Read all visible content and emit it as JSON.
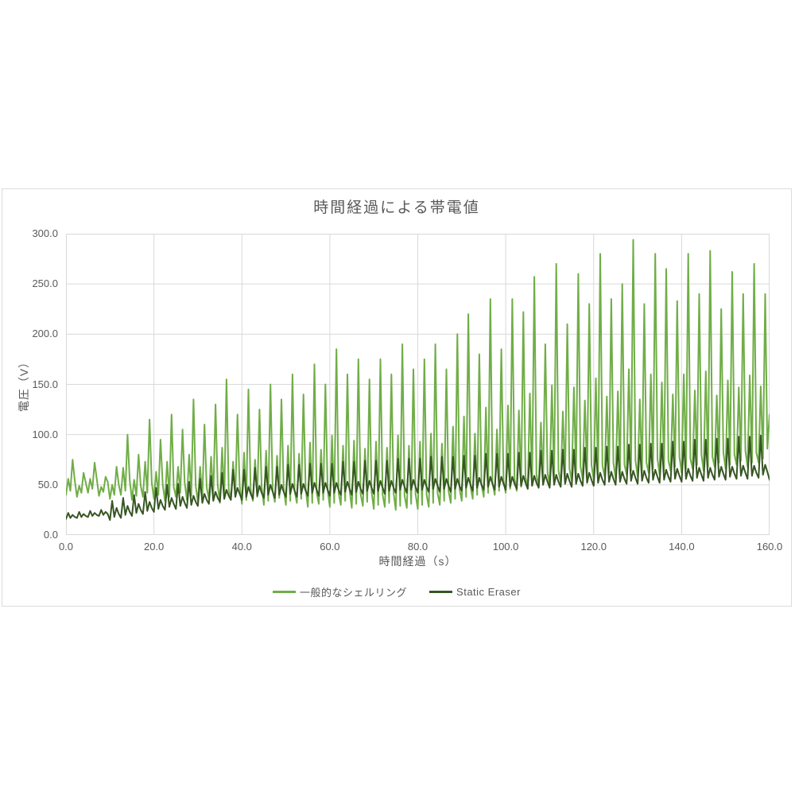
{
  "page": {
    "background": "#ffffff"
  },
  "chart": {
    "title": "時間経過による帯電値",
    "y_axis_title": "電圧（V）",
    "x_axis_title": "時間経過（s）"
  },
  "legend": {
    "position": "bottom-center",
    "items": [
      {
        "label": "一般的なシェルリング",
        "color": "#70ad47"
      },
      {
        "label": "Static Eraser",
        "color": "#375623"
      }
    ]
  },
  "colors": {
    "grid": "#d9d9d9",
    "text": "#595959",
    "panel_border": "#dcdcdc",
    "series_light_green": "#70ad47",
    "series_dark_green": "#375623"
  },
  "chart_data": {
    "type": "line",
    "title": "時間経過による帯電値",
    "xlabel": "時間経過（s）",
    "ylabel": "電圧（V）",
    "xlim": [
      0,
      160
    ],
    "ylim": [
      0,
      300
    ],
    "grid": true,
    "x_ticks": [
      0,
      20,
      40,
      60,
      80,
      100,
      120,
      140,
      160
    ],
    "x_tick_labels": [
      "0.0",
      "20.0",
      "40.0",
      "60.0",
      "80.0",
      "100.0",
      "120.0",
      "140.0",
      "160.0"
    ],
    "y_ticks": [
      0,
      50,
      100,
      150,
      200,
      250,
      300
    ],
    "y_tick_labels": [
      "0.0",
      "50.0",
      "100.0",
      "150.0",
      "200.0",
      "250.0",
      "300.0"
    ],
    "x_start": 0,
    "x_step": 0.5,
    "series": [
      {
        "name": "一般的なシェルリング",
        "color": "#70ad47",
        "stroke_width": 2,
        "values": [
          40,
          56,
          44,
          75,
          54,
          38,
          49,
          42,
          62,
          52,
          42,
          56,
          46,
          72,
          56,
          39,
          48,
          43,
          58,
          53,
          36,
          50,
          40,
          68,
          50,
          40,
          67,
          44,
          100,
          54,
          35,
          55,
          39,
          80,
          49,
          38,
          73,
          42,
          115,
          52,
          36,
          63,
          40,
          95,
          50,
          34,
          73,
          38,
          120,
          48,
          38,
          68,
          42,
          105,
          52,
          35,
          80,
          39,
          135,
          49,
          33,
          68,
          37,
          110,
          47,
          36,
          78,
          40,
          130,
          50,
          32,
          87,
          36,
          155,
          46,
          35,
          73,
          39,
          120,
          49,
          31,
          82,
          35,
          145,
          45,
          34,
          75,
          38,
          125,
          48,
          30,
          84,
          34,
          150,
          44,
          33,
          79,
          37,
          135,
          47,
          30,
          89,
          34,
          160,
          44,
          32,
          81,
          36,
          140,
          46,
          28,
          92,
          32,
          170,
          42,
          31,
          85,
          35,
          150,
          45,
          28,
          99,
          32,
          185,
          42,
          30,
          89,
          34,
          160,
          44,
          27,
          94,
          31,
          175,
          41,
          29,
          86,
          33,
          155,
          43,
          26,
          93,
          30,
          175,
          40,
          28,
          87,
          32,
          160,
          42,
          25,
          99,
          29,
          190,
          39,
          27,
          89,
          31,
          165,
          41,
          26,
          93,
          30,
          175,
          40,
          28,
          101,
          32,
          190,
          42,
          30,
          91,
          34,
          165,
          44,
          32,
          108,
          36,
          200,
          46,
          34,
          118,
          38,
          220,
          48,
          36,
          101,
          40,
          180,
          50,
          38,
          127,
          42,
          235,
          52,
          40,
          105,
          44,
          185,
          54,
          42,
          129,
          46,
          235,
          56,
          44,
          124,
          48,
          222,
          58,
          46,
          141,
          50,
          257,
          60,
          48,
          112,
          52,
          190,
          62,
          50,
          149,
          54,
          270,
          64,
          52,
          123,
          56,
          210,
          66,
          54,
          147,
          58,
          260,
          68,
          56,
          134,
          60,
          230,
          70,
          55,
          156,
          59,
          280,
          69,
          58,
          138,
          62,
          235,
          72,
          56,
          143,
          60,
          250,
          70,
          60,
          165,
          64,
          294,
          74,
          58,
          135,
          62,
          230,
          72,
          62,
          160,
          66,
          280,
          76,
          60,
          152,
          64,
          265,
          74,
          64,
          140,
          68,
          233,
          78,
          62,
          160,
          66,
          280,
          76,
          66,
          144,
          70,
          240,
          80,
          64,
          163,
          68,
          283,
          78,
          68,
          139,
          72,
          225,
          82,
          66,
          154,
          70,
          262,
          80,
          70,
          147,
          74,
          240,
          84,
          68,
          159,
          72,
          270,
          82,
          72,
          148,
          76,
          240,
          86,
          120
        ]
      },
      {
        "name": "Static Eraser",
        "color": "#375623",
        "stroke_width": 2,
        "values": [
          16,
          22,
          17,
          20,
          18,
          17,
          23,
          18,
          21,
          19,
          18,
          24,
          19,
          22,
          20,
          19,
          25,
          20,
          23,
          21,
          15,
          34,
          18,
          27,
          21,
          17,
          37,
          20,
          29,
          23,
          19,
          40,
          22,
          31,
          25,
          21,
          43,
          24,
          33,
          27,
          23,
          47,
          26,
          35,
          29,
          25,
          50,
          28,
          37,
          31,
          26,
          51,
          29,
          38,
          32,
          27,
          53,
          30,
          39,
          33,
          29,
          56,
          32,
          41,
          35,
          31,
          59,
          34,
          43,
          37,
          33,
          62,
          36,
          45,
          39,
          35,
          65,
          38,
          47,
          41,
          35,
          65,
          38,
          48,
          41,
          36,
          67,
          39,
          49,
          42,
          37,
          68,
          40,
          50,
          43,
          37,
          68,
          40,
          50,
          43,
          38,
          70,
          41,
          51,
          44,
          38,
          70,
          41,
          51,
          44,
          39,
          71,
          42,
          52,
          45,
          39,
          71,
          42,
          52,
          45,
          39,
          71,
          42,
          52,
          45,
          40,
          73,
          43,
          53,
          46,
          40,
          73,
          43,
          53,
          46,
          41,
          74,
          44,
          54,
          47,
          41,
          74,
          44,
          54,
          47,
          41,
          74,
          44,
          54,
          47,
          42,
          76,
          45,
          55,
          48,
          42,
          76,
          45,
          55,
          48,
          42,
          76,
          45,
          55,
          48,
          43,
          78,
          46,
          56,
          49,
          43,
          78,
          46,
          56,
          49,
          43,
          78,
          46,
          56,
          49,
          44,
          79,
          47,
          57,
          50,
          44,
          79,
          47,
          57,
          50,
          45,
          81,
          48,
          58,
          51,
          45,
          81,
          48,
          58,
          51,
          45,
          81,
          48,
          58,
          51,
          46,
          82,
          49,
          59,
          52,
          46,
          82,
          49,
          59,
          52,
          47,
          84,
          50,
          60,
          53,
          47,
          84,
          50,
          60,
          53,
          48,
          85,
          51,
          61,
          54,
          48,
          85,
          51,
          61,
          54,
          49,
          87,
          52,
          62,
          55,
          49,
          87,
          52,
          62,
          55,
          50,
          88,
          53,
          63,
          56,
          50,
          88,
          53,
          63,
          56,
          51,
          90,
          54,
          64,
          57,
          51,
          90,
          54,
          64,
          57,
          52,
          91,
          55,
          65,
          58,
          52,
          91,
          55,
          65,
          58,
          53,
          93,
          56,
          66,
          59,
          53,
          93,
          56,
          66,
          59,
          54,
          95,
          57,
          67,
          60,
          54,
          95,
          57,
          67,
          60,
          55,
          96,
          58,
          68,
          61,
          55,
          96,
          58,
          68,
          61,
          56,
          98,
          59,
          69,
          62,
          56,
          98,
          59,
          69,
          62,
          57,
          99,
          60,
          70,
          63,
          55
        ]
      }
    ]
  }
}
